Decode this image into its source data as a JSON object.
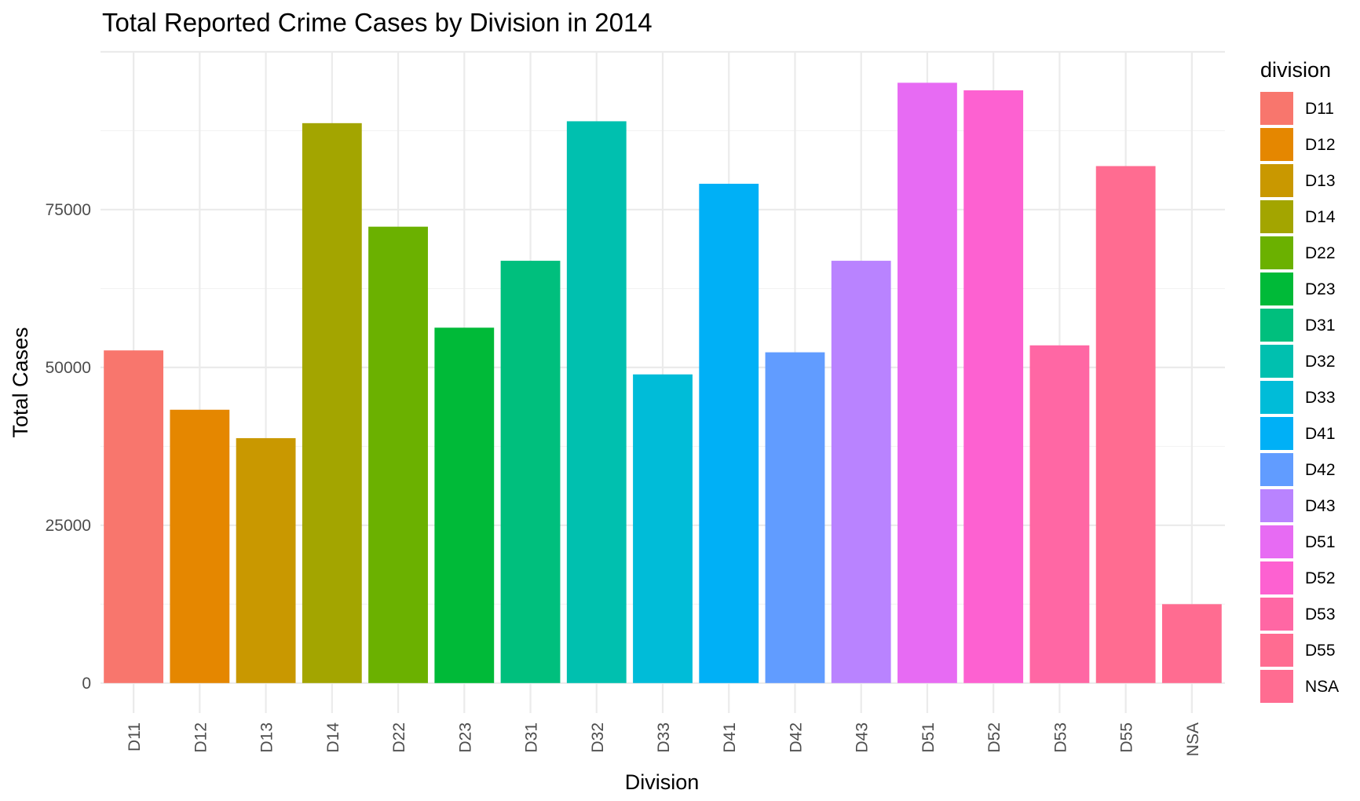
{
  "chart_data": {
    "type": "bar",
    "title": "Total Reported Crime Cases by Division in 2014",
    "xlabel": "Division",
    "ylabel": "Total Cases",
    "categories": [
      "D11",
      "D12",
      "D13",
      "D14",
      "D22",
      "D23",
      "D31",
      "D32",
      "D33",
      "D41",
      "D42",
      "D43",
      "D51",
      "D52",
      "D53",
      "D55",
      "NSA"
    ],
    "values": [
      52700,
      43300,
      38800,
      88700,
      72300,
      56300,
      66900,
      89000,
      48900,
      79100,
      52400,
      66900,
      95100,
      93900,
      53500,
      81900,
      12500
    ],
    "colors": [
      "#F8766D",
      "#E58700",
      "#C99800",
      "#A3A500",
      "#6BB100",
      "#00BA38",
      "#00BF7D",
      "#00C0AF",
      "#00BCD8",
      "#00B0F6",
      "#619CFF",
      "#B983FF",
      "#E76BF3",
      "#FD61D1",
      "#FF67A4",
      "#FF6C91",
      "#FF6C91"
    ],
    "yticks": [
      0,
      25000,
      50000,
      75000
    ],
    "ylim": [
      -4750,
      100000
    ],
    "grid": true,
    "legend": {
      "title": "division",
      "position": "right"
    }
  }
}
